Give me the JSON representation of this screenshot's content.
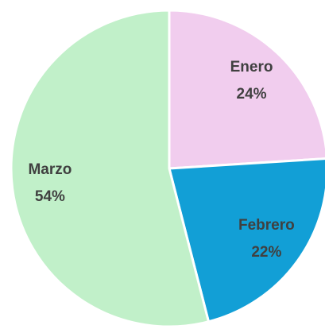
{
  "chart_data": {
    "type": "pie",
    "categories": [
      "Enero",
      "Febrero",
      "Marzo"
    ],
    "values": [
      24,
      22,
      54
    ],
    "value_labels": [
      "24%",
      "22%",
      "54%"
    ],
    "colors": [
      "#f1cdee",
      "#129fd6",
      "#c1f0c9"
    ]
  }
}
